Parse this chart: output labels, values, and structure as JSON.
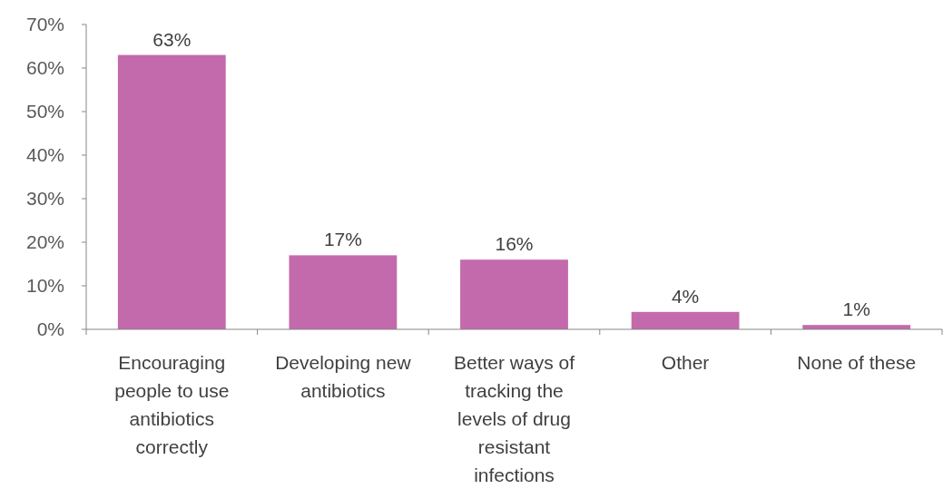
{
  "chart_data": {
    "type": "bar",
    "categories": [
      "Encouraging people to use antibiotics correctly",
      "Developing new antibiotics",
      "Better ways of tracking the levels of drug resistant infections",
      "Other",
      "None of these"
    ],
    "values": [
      63,
      17,
      16,
      4,
      1
    ],
    "color": "#c36aad",
    "value_labels": [
      "63%",
      "17%",
      "16%",
      "4%",
      "1%"
    ],
    "ylim": [
      0,
      70
    ],
    "yticks": [
      {
        "value": 0,
        "label": "0%"
      },
      {
        "value": 10,
        "label": "10%"
      },
      {
        "value": 20,
        "label": "20%"
      },
      {
        "value": 30,
        "label": "30%"
      },
      {
        "value": 40,
        "label": "40%"
      },
      {
        "value": 50,
        "label": "50%"
      },
      {
        "value": 60,
        "label": "60%"
      },
      {
        "value": 70,
        "label": "70%"
      }
    ],
    "grid": false
  }
}
